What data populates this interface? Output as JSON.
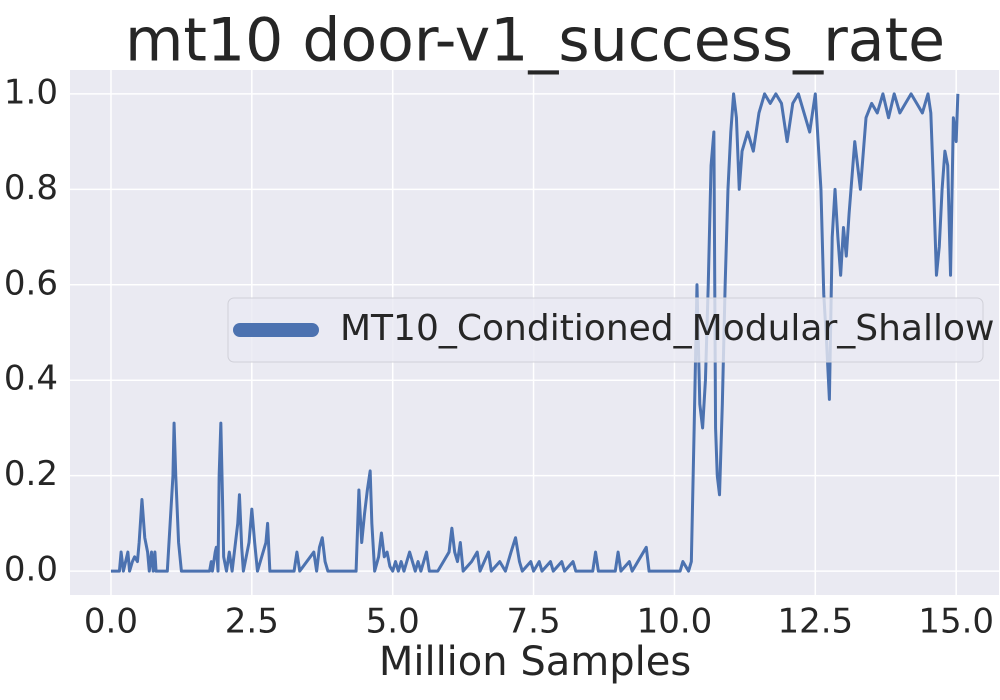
{
  "chart_data": {
    "type": "line",
    "title": "mt10 door-v1_success_rate",
    "xlabel": "Million Samples",
    "x": [
      0.0,
      0.15,
      0.18,
      0.22,
      0.3,
      0.33,
      0.38,
      0.42,
      0.47,
      0.5,
      0.55,
      0.6,
      0.65,
      0.68,
      0.72,
      0.75,
      0.78,
      0.8,
      1.0,
      1.05,
      1.1,
      1.12,
      1.15,
      1.2,
      1.25,
      1.75,
      1.78,
      1.8,
      1.85,
      1.87,
      1.9,
      1.92,
      1.95,
      1.98,
      2.0,
      2.05,
      2.1,
      2.15,
      2.25,
      2.28,
      2.32,
      2.35,
      2.45,
      2.5,
      2.55,
      2.6,
      2.75,
      2.78,
      2.82,
      3.25,
      3.3,
      3.35,
      3.6,
      3.65,
      3.7,
      3.75,
      3.8,
      3.85,
      4.35,
      4.4,
      4.45,
      4.5,
      4.55,
      4.6,
      4.63,
      4.68,
      4.75,
      4.8,
      4.85,
      4.9,
      4.95,
      5.0,
      5.05,
      5.1,
      5.15,
      5.2,
      5.25,
      5.3,
      5.35,
      5.4,
      5.45,
      5.5,
      5.6,
      5.65,
      5.8,
      5.9,
      6.0,
      6.05,
      6.1,
      6.15,
      6.2,
      6.25,
      6.4,
      6.5,
      6.55,
      6.7,
      6.75,
      6.9,
      7.0,
      7.1,
      7.18,
      7.25,
      7.3,
      7.45,
      7.5,
      7.6,
      7.65,
      7.8,
      7.85,
      8.0,
      8.05,
      8.2,
      8.25,
      8.55,
      8.6,
      8.65,
      8.95,
      9.0,
      9.05,
      9.2,
      9.25,
      9.45,
      9.5,
      9.55,
      10.1,
      10.15,
      10.25,
      10.3,
      10.35,
      10.4,
      10.45,
      10.5,
      10.55,
      10.6,
      10.65,
      10.7,
      10.73,
      10.76,
      10.8,
      10.85,
      10.9,
      10.95,
      11.0,
      11.05,
      11.1,
      11.15,
      11.2,
      11.3,
      11.4,
      11.5,
      11.6,
      11.7,
      11.8,
      11.9,
      12.0,
      12.1,
      12.2,
      12.3,
      12.4,
      12.5,
      12.6,
      12.65,
      12.7,
      12.75,
      12.8,
      12.85,
      12.9,
      12.95,
      13.0,
      13.05,
      13.1,
      13.2,
      13.3,
      13.4,
      13.5,
      13.6,
      13.7,
      13.8,
      13.9,
      14.0,
      14.1,
      14.2,
      14.3,
      14.4,
      14.5,
      14.55,
      14.6,
      14.65,
      14.7,
      14.75,
      14.8,
      14.85,
      14.9,
      14.95,
      15.0,
      15.03
    ],
    "series": [
      {
        "name": "MT10_Conditioned_Modular_Shallow",
        "color": "#4c72b0",
        "values": [
          0,
          0,
          0.04,
          0,
          0.04,
          0,
          0.02,
          0.03,
          0.02,
          0.06,
          0.15,
          0.07,
          0.04,
          0,
          0.04,
          0,
          0.04,
          0,
          0,
          0.1,
          0.2,
          0.31,
          0.2,
          0.06,
          0,
          0,
          0.02,
          0,
          0.04,
          0.05,
          0,
          0.2,
          0.31,
          0.15,
          0.03,
          0,
          0.04,
          0,
          0.1,
          0.16,
          0.05,
          0,
          0.06,
          0.13,
          0.06,
          0,
          0.06,
          0.1,
          0,
          0,
          0.04,
          0,
          0.04,
          0,
          0.05,
          0.07,
          0.02,
          0,
          0,
          0.17,
          0.06,
          0.12,
          0.17,
          0.21,
          0.1,
          0,
          0.03,
          0.08,
          0.03,
          0.04,
          0.01,
          0,
          0.02,
          0,
          0.02,
          0,
          0.02,
          0.04,
          0.02,
          0,
          0.02,
          0,
          0.04,
          0,
          0,
          0.02,
          0.04,
          0.09,
          0.04,
          0.02,
          0.06,
          0,
          0.02,
          0.04,
          0,
          0.04,
          0,
          0.02,
          0,
          0.04,
          0.07,
          0.02,
          0,
          0.02,
          0,
          0.02,
          0,
          0.02,
          0,
          0.02,
          0,
          0.02,
          0,
          0,
          0.04,
          0,
          0,
          0.04,
          0,
          0.02,
          0,
          0.04,
          0.05,
          0,
          0,
          0.02,
          0,
          0.02,
          0.3,
          0.6,
          0.35,
          0.3,
          0.4,
          0.6,
          0.85,
          0.92,
          0.3,
          0.2,
          0.16,
          0.35,
          0.6,
          0.8,
          0.92,
          1.0,
          0.95,
          0.8,
          0.88,
          0.92,
          0.88,
          0.96,
          1.0,
          0.98,
          1.0,
          0.98,
          0.9,
          0.98,
          1.0,
          0.96,
          0.92,
          1.0,
          0.8,
          0.58,
          0.48,
          0.36,
          0.7,
          0.8,
          0.7,
          0.62,
          0.72,
          0.66,
          0.75,
          0.9,
          0.8,
          0.95,
          0.98,
          0.96,
          1.0,
          0.95,
          1.0,
          0.96,
          0.98,
          1.0,
          0.98,
          0.96,
          1.0,
          0.96,
          0.8,
          0.62,
          0.68,
          0.8,
          0.88,
          0.85,
          0.62,
          0.95,
          0.9,
          1.0
        ]
      }
    ],
    "xlim": [
      -0.727,
      15.76
    ],
    "ylim": [
      -0.05,
      1.05
    ],
    "xticks": [
      {
        "value": 0,
        "label": "0.0"
      },
      2.5,
      {
        "value": 5,
        "label": "5.0"
      },
      7.5,
      {
        "value": 10,
        "label": "10.0"
      },
      12.5,
      {
        "value": 15,
        "label": "15.0"
      }
    ],
    "yticks": [
      {
        "value": 0,
        "label": "0.0"
      },
      0.2,
      0.4,
      0.6,
      0.8,
      {
        "value": 1,
        "label": "1.0"
      }
    ],
    "grid": true,
    "legend": "center right"
  }
}
